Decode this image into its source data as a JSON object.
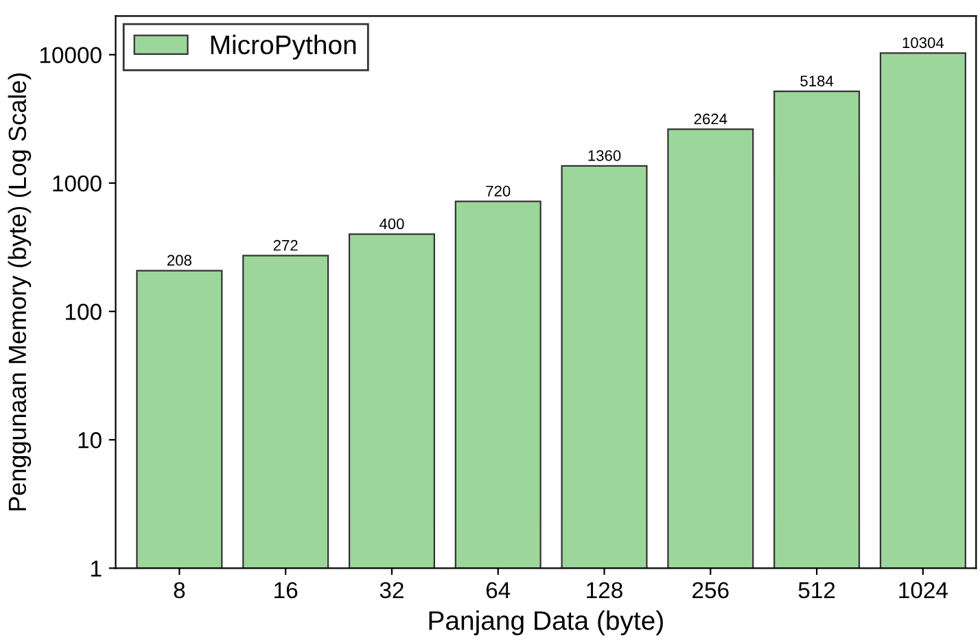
{
  "chart_data": {
    "type": "bar",
    "xlabel": "Panjang Data (byte)",
    "ylabel": "Penggunaan Memory (byte) (Log Scale)",
    "categories": [
      "8",
      "16",
      "32",
      "64",
      "128",
      "256",
      "512",
      "1024"
    ],
    "series": [
      {
        "name": "MicroPython",
        "color": "#9dd69b",
        "values": [
          208,
          272,
          400,
          720,
          1360,
          2624,
          5184,
          10304
        ]
      }
    ],
    "log": "y",
    "ylim": [
      1,
      20000
    ],
    "yticks": [
      1,
      10,
      100,
      1000,
      10000
    ],
    "data_labels": true,
    "legend": "top left",
    "grid": false
  }
}
